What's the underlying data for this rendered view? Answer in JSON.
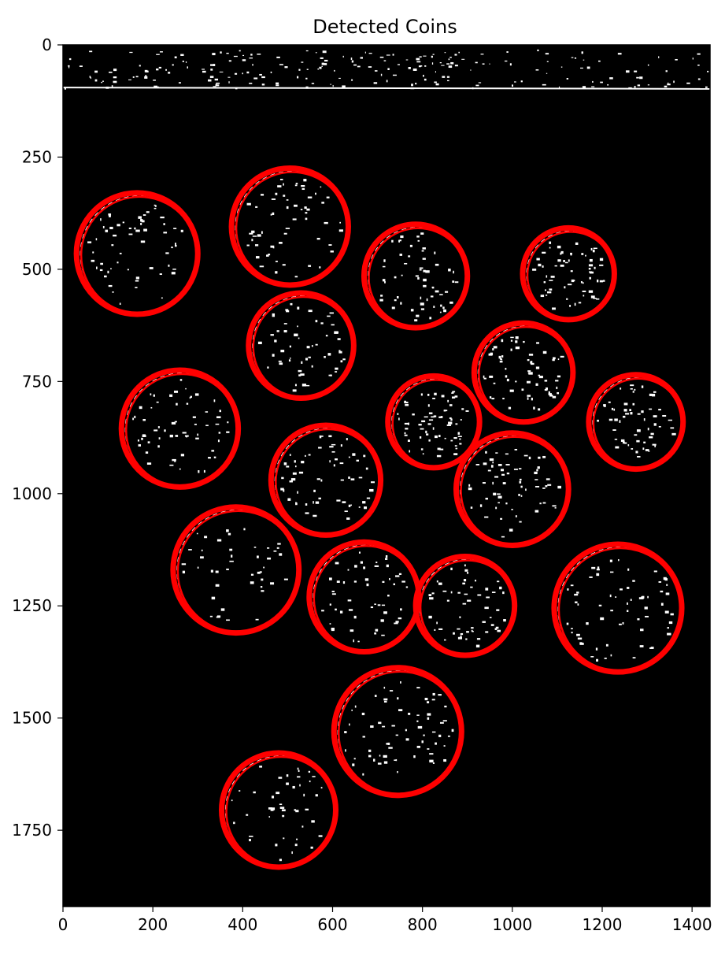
{
  "chart_data": {
    "type": "image",
    "title": "Detected Coins",
    "xlabel": "",
    "ylabel": "",
    "xlim": [
      0,
      1440
    ],
    "ylim": [
      1920,
      0
    ],
    "x_ticks": [
      0,
      200,
      400,
      600,
      800,
      1000,
      1200,
      1400
    ],
    "y_ticks": [
      0,
      250,
      500,
      750,
      1000,
      1250,
      1500,
      1750
    ],
    "grid": false,
    "image_description": "black background binary edge map with white edge pixels",
    "circle_color": "#ff0000",
    "edge_color": "#ffffff",
    "background_color": "#000000",
    "circles": [
      {
        "x": 165,
        "y": 465,
        "r": 135
      },
      {
        "x": 505,
        "y": 405,
        "r": 130
      },
      {
        "x": 785,
        "y": 515,
        "r": 115
      },
      {
        "x": 1125,
        "y": 510,
        "r": 102
      },
      {
        "x": 530,
        "y": 670,
        "r": 117
      },
      {
        "x": 1025,
        "y": 730,
        "r": 110
      },
      {
        "x": 260,
        "y": 855,
        "r": 130
      },
      {
        "x": 825,
        "y": 840,
        "r": 102
      },
      {
        "x": 1275,
        "y": 840,
        "r": 105
      },
      {
        "x": 585,
        "y": 970,
        "r": 122
      },
      {
        "x": 1000,
        "y": 990,
        "r": 125
      },
      {
        "x": 385,
        "y": 1170,
        "r": 140
      },
      {
        "x": 670,
        "y": 1230,
        "r": 122
      },
      {
        "x": 895,
        "y": 1250,
        "r": 110
      },
      {
        "x": 1235,
        "y": 1255,
        "r": 142
      },
      {
        "x": 745,
        "y": 1530,
        "r": 142
      },
      {
        "x": 480,
        "y": 1705,
        "r": 127
      }
    ]
  }
}
